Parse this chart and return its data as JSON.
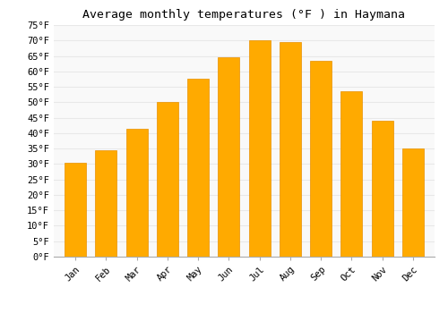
{
  "title": "Average monthly temperatures (°F ) in Haymana",
  "months": [
    "Jan",
    "Feb",
    "Mar",
    "Apr",
    "May",
    "Jun",
    "Jul",
    "Aug",
    "Sep",
    "Oct",
    "Nov",
    "Dec"
  ],
  "values": [
    30.5,
    34.5,
    41.5,
    50.0,
    57.5,
    64.5,
    70.0,
    69.5,
    63.5,
    53.5,
    44.0,
    35.0
  ],
  "bar_color": "#FFAA00",
  "bar_edge_color": "#E89000",
  "ylim": [
    0,
    75
  ],
  "yticks": [
    0,
    5,
    10,
    15,
    20,
    25,
    30,
    35,
    40,
    45,
    50,
    55,
    60,
    65,
    70,
    75
  ],
  "background_color": "#ffffff",
  "plot_bg_color": "#f9f9f9",
  "grid_color": "#e8e8e8",
  "title_fontsize": 9.5,
  "tick_fontsize": 7.5,
  "font_family": "monospace"
}
